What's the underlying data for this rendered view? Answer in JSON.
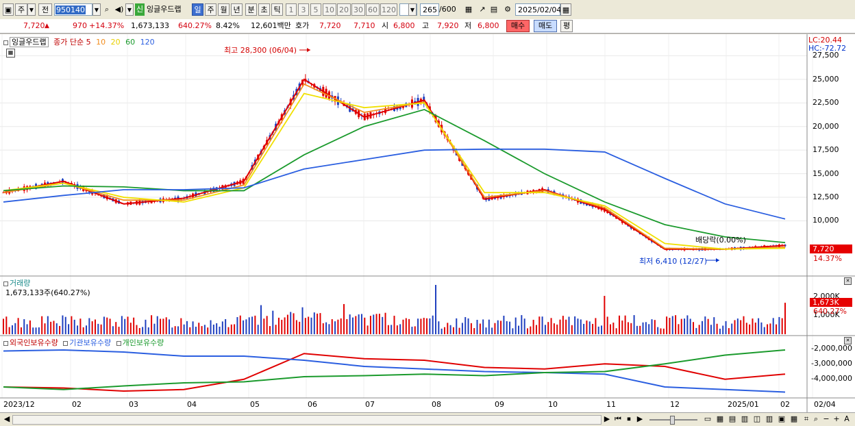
{
  "toolbar": {
    "market": "주",
    "prev": "전",
    "code": "950140",
    "badge": "신",
    "stock_name": "잉글우드랩",
    "periods": [
      "일",
      "주",
      "월",
      "년",
      "분",
      "초",
      "틱"
    ],
    "active_period": "일",
    "intervals": [
      "1",
      "3",
      "5",
      "10",
      "20",
      "30",
      "60",
      "120"
    ],
    "count": "265",
    "count_max": "/600",
    "date": "2025/02/04"
  },
  "quote": {
    "price": "7,720",
    "arrow": "▲",
    "change": "970",
    "change_pct": "+14.37%",
    "volume": "1,673,133",
    "volume_ratio": "640.27%",
    "turnover": "8.42%",
    "amount": "12,601백만",
    "ask_label": "호가",
    "ask1": "7,720",
    "ask2": "7,710",
    "open_label": "시",
    "open": "6,800",
    "high_label": "고",
    "high": "7,920",
    "low_label": "저",
    "low": "6,800",
    "buy_label": "매수",
    "sell_label": "매도",
    "eval_label": "평"
  },
  "price_panel": {
    "name": "잉글우드랩",
    "ma_label": "종가 단순",
    "ma_periods": [
      "5",
      "10",
      "20",
      "60",
      "120"
    ],
    "ma_colors": [
      "#e00000",
      "#f28c1c",
      "#f0e000",
      "#1a9a2c",
      "#2a5ee0"
    ],
    "lc_label": "LC:20.44",
    "hc_label": "HC:-72.72",
    "high_annotation": "최고 28,300 (06/04)",
    "low_annotation": "최저 6,410 (12/27)",
    "dividend_annotation": "배당락(0.00%)",
    "y_ticks": [
      "27,500",
      "25,000",
      "22,500",
      "20,000",
      "17,500",
      "15,000",
      "12,500",
      "10,000"
    ],
    "y_tick_values": [
      27500,
      25000,
      22500,
      20000,
      17500,
      15000,
      12500,
      10000
    ],
    "ylim": [
      5100,
      29200
    ],
    "last_price": "7,720",
    "last_pct": "14.37%"
  },
  "volume_panel": {
    "title": "거래량",
    "value": "1,673,133주(640.27%)",
    "y_ticks": [
      "2,000K",
      "1,000K"
    ],
    "last": "1,673K",
    "last_pct": "640.27%"
  },
  "holdings_panel": {
    "legend": [
      "외국인보유수량",
      "기관보유수량",
      "개인보유수량"
    ],
    "legend_colors": [
      "#e00000",
      "#2a5ee0",
      "#1a9a2c"
    ],
    "y_ticks": [
      "-2,000,000",
      "-3,000,000",
      "-4,000,000"
    ]
  },
  "x_axis": {
    "labels": [
      "2023/12",
      "02",
      "03",
      "04",
      "05",
      "06",
      "07",
      "08",
      "09",
      "10",
      "11",
      "12",
      "2025/01",
      "02",
      "02/04"
    ]
  },
  "chart_data": {
    "type": "line",
    "x": [
      "2023/12",
      "2024/02",
      "2024/03",
      "2024/04",
      "2024/05",
      "2024/06",
      "2024/07",
      "2024/08",
      "2024/09",
      "2024/10",
      "2024/11",
      "2024/12",
      "2025/01",
      "2025/02"
    ],
    "series": [
      {
        "name": "5",
        "values": [
          13000,
          14200,
          11800,
          12400,
          14200,
          25000,
          21000,
          22800,
          12300,
          13300,
          11200,
          7000,
          7000,
          7400
        ]
      },
      {
        "name": "10",
        "values": [
          13000,
          14000,
          12200,
          12200,
          13800,
          24500,
          21500,
          22600,
          12500,
          13200,
          11400,
          7100,
          7000,
          7200
        ]
      },
      {
        "name": "20",
        "values": [
          13200,
          14000,
          12500,
          12000,
          13500,
          23500,
          22000,
          22500,
          13000,
          13000,
          11600,
          7600,
          7000,
          7100
        ]
      },
      {
        "name": "60",
        "values": [
          13200,
          13700,
          13600,
          13200,
          13200,
          17000,
          20000,
          21800,
          18500,
          15000,
          12000,
          9600,
          8300,
          7700
        ]
      },
      {
        "name": "120",
        "values": [
          12000,
          12700,
          13300,
          13300,
          13500,
          15500,
          16500,
          17500,
          17600,
          17600,
          17300,
          14500,
          11800,
          10200
        ]
      }
    ],
    "ylim": [
      5100,
      29200
    ]
  },
  "statusbar": {
    "nav": [
      "◀",
      "▶",
      "⏮",
      "⏹",
      "▶"
    ]
  }
}
